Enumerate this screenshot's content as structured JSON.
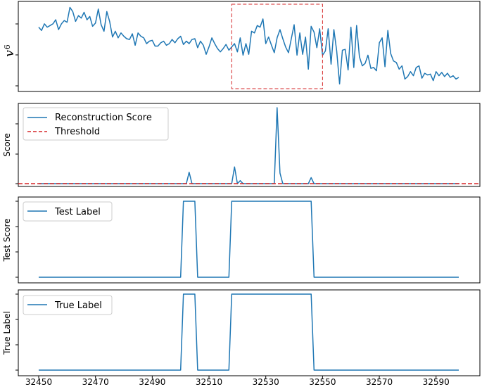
{
  "chart_data": [
    {
      "type": "line",
      "ylabel_main": "v",
      "ylabel_sub": "6",
      "color": "#1f77b4",
      "highlight": {
        "x_range": [
          32518,
          32550
        ],
        "color": "#d62728",
        "style": "dashed"
      },
      "x": [
        32450,
        32451,
        32452,
        32453,
        32454,
        32455,
        32456,
        32457,
        32458,
        32459,
        32460,
        32461,
        32462,
        32463,
        32464,
        32465,
        32466,
        32467,
        32468,
        32469,
        32470,
        32471,
        32472,
        32473,
        32474,
        32475,
        32476,
        32477,
        32478,
        32479,
        32480,
        32481,
        32482,
        32483,
        32484,
        32485,
        32486,
        32487,
        32488,
        32489,
        32490,
        32491,
        32492,
        32493,
        32494,
        32495,
        32496,
        32497,
        32498,
        32499,
        32500,
        32501,
        32502,
        32503,
        32504,
        32505,
        32506,
        32507,
        32508,
        32509,
        32510,
        32511,
        32512,
        32513,
        32514,
        32515,
        32516,
        32517,
        32518,
        32519,
        32520,
        32521,
        32522,
        32523,
        32524,
        32525,
        32526,
        32527,
        32528,
        32529,
        32530,
        32531,
        32532,
        32533,
        32534,
        32535,
        32536,
        32537,
        32538,
        32539,
        32540,
        32541,
        32542,
        32543,
        32544,
        32545,
        32546,
        32547,
        32548,
        32549,
        32550,
        32551,
        32552,
        32553,
        32554,
        32555,
        32556,
        32557,
        32558,
        32559,
        32560,
        32561,
        32562,
        32563,
        32564,
        32565,
        32566,
        32567,
        32568,
        32569,
        32570,
        32571,
        32572,
        32573,
        32574,
        32575,
        32576,
        32577,
        32578,
        32579,
        32580,
        32581,
        32582,
        32583,
        32584,
        32585,
        32586,
        32587,
        32588,
        32589,
        32590,
        32591,
        32592,
        32593,
        32594,
        32595,
        32596,
        32597,
        32598
      ],
      "values": [
        0.73,
        0.69,
        0.77,
        0.73,
        0.75,
        0.77,
        0.82,
        0.7,
        0.77,
        0.81,
        0.79,
        0.97,
        0.92,
        0.8,
        0.87,
        0.84,
        0.91,
        0.82,
        0.86,
        0.74,
        0.78,
        0.95,
        0.76,
        0.68,
        0.92,
        0.8,
        0.61,
        0.68,
        0.6,
        0.66,
        0.62,
        0.59,
        0.58,
        0.65,
        0.51,
        0.66,
        0.62,
        0.6,
        0.53,
        0.56,
        0.57,
        0.5,
        0.5,
        0.54,
        0.56,
        0.51,
        0.53,
        0.58,
        0.54,
        0.59,
        0.62,
        0.52,
        0.56,
        0.53,
        0.58,
        0.59,
        0.48,
        0.56,
        0.51,
        0.4,
        0.49,
        0.6,
        0.53,
        0.47,
        0.43,
        0.47,
        0.52,
        0.45,
        0.49,
        0.53,
        0.43,
        0.6,
        0.39,
        0.53,
        0.4,
        0.68,
        0.66,
        0.75,
        0.73,
        0.83,
        0.53,
        0.61,
        0.51,
        0.42,
        0.6,
        0.7,
        0.59,
        0.49,
        0.42,
        0.59,
        0.76,
        0.39,
        0.66,
        0.4,
        0.61,
        0.22,
        0.74,
        0.67,
        0.48,
        0.71,
        0.39,
        0.44,
        0.71,
        0.28,
        0.7,
        0.44,
        0.04,
        0.45,
        0.46,
        0.21,
        0.73,
        0.24,
        0.75,
        0.37,
        0.26,
        0.29,
        0.39,
        0.23,
        0.24,
        0.2,
        0.54,
        0.6,
        0.25,
        0.69,
        0.41,
        0.32,
        0.3,
        0.22,
        0.26,
        0.1,
        0.13,
        0.19,
        0.14,
        0.24,
        0.26,
        0.11,
        0.17,
        0.15,
        0.16,
        0.08,
        0.19,
        0.14,
        0.18,
        0.13,
        0.17,
        0.12,
        0.14,
        0.1,
        0.12
      ]
    },
    {
      "type": "line",
      "ylabel": "Score",
      "series": [
        {
          "name": "Reconstruction Score",
          "color": "#1f77b4",
          "style": "solid",
          "x": [
            32450,
            32501,
            32502,
            32503,
            32504,
            32505,
            32518,
            32519,
            32520,
            32521,
            32522,
            32533,
            32534,
            32535,
            32536,
            32545,
            32546,
            32547,
            32548,
            32549,
            32598
          ],
          "values": [
            0.0,
            0.0,
            0.0,
            0.15,
            0.0,
            0.0,
            0.0,
            0.22,
            0.0,
            0.04,
            0.0,
            0.0,
            1.0,
            0.14,
            0.0,
            0.0,
            0.08,
            0.0,
            0.0,
            0.0,
            0.0
          ]
        },
        {
          "name": "Threshold",
          "color": "#d62728",
          "style": "dashed",
          "value": 0.0
        }
      ],
      "legend": "top-left"
    },
    {
      "type": "line",
      "ylabel": "Test Score",
      "series": [
        {
          "name": "Test Label",
          "color": "#1f77b4",
          "style": "solid",
          "x": [
            32450,
            32500,
            32501,
            32505,
            32506,
            32517,
            32518,
            32546,
            32547,
            32598
          ],
          "values": [
            0,
            0,
            1,
            1,
            0,
            0,
            1,
            1,
            0,
            0
          ]
        }
      ],
      "legend": "top-left"
    },
    {
      "type": "line",
      "ylabel": "True Label",
      "xticks": [
        "32450",
        "32470",
        "32490",
        "32510",
        "32530",
        "32550",
        "32570",
        "32590"
      ],
      "xtick_values": [
        32450,
        32470,
        32490,
        32510,
        32530,
        32550,
        32570,
        32590
      ],
      "series": [
        {
          "name": "True Label",
          "color": "#1f77b4",
          "style": "solid",
          "x": [
            32450,
            32500,
            32501,
            32505,
            32506,
            32517,
            32518,
            32546,
            32547,
            32598
          ],
          "values": [
            0,
            0,
            1,
            1,
            0,
            0,
            1,
            1,
            0,
            0
          ]
        }
      ],
      "legend": "top-left"
    }
  ]
}
